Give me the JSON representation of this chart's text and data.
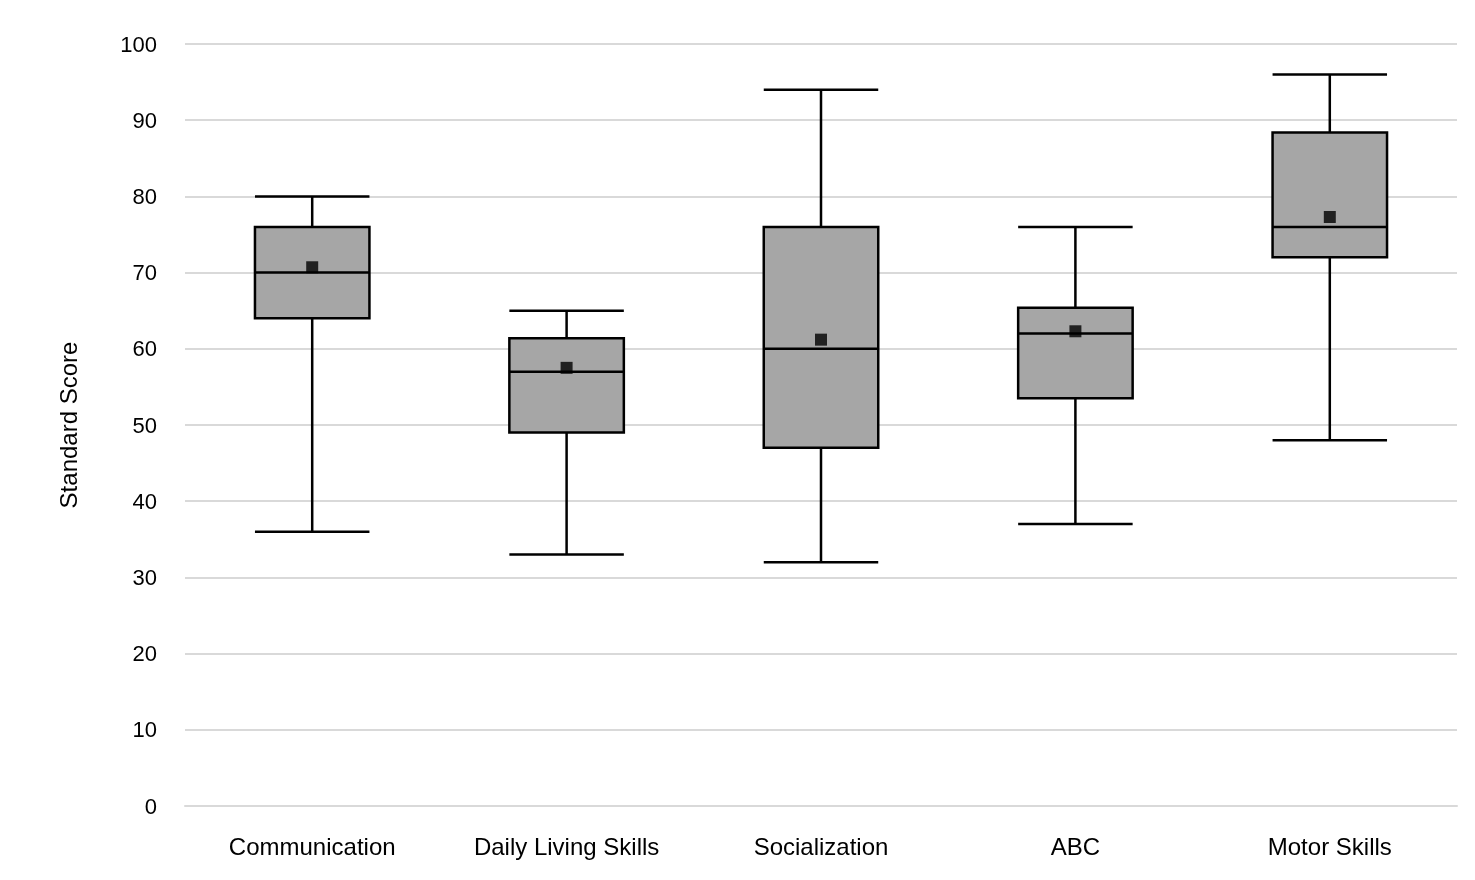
{
  "chart_data": {
    "type": "box",
    "ylabel": "Standard Score",
    "categories": [
      "Communication",
      "Daily Living Skills",
      "Socialization",
      "ABC",
      "Motor Skills"
    ],
    "series": [
      {
        "color": "#a6a6a6",
        "boxes": [
          {
            "low": 36,
            "q1": 64,
            "median": 70,
            "q3": 76,
            "high": 80,
            "mean": 70.7
          },
          {
            "low": 33,
            "q1": 49,
            "median": 57,
            "q3": 61.4,
            "high": 65,
            "mean": 57.5
          },
          {
            "low": 32,
            "q1": 47,
            "median": 60,
            "q3": 76,
            "high": 94,
            "mean": 61.2
          },
          {
            "low": 37,
            "q1": 53.5,
            "median": 62,
            "q3": 65.4,
            "high": 76,
            "mean": 62.3
          },
          {
            "low": 48,
            "q1": 72,
            "median": 76,
            "q3": 88.4,
            "high": 96,
            "mean": 77.3
          }
        ]
      }
    ],
    "ylim": [
      0,
      100
    ],
    "yticks": [
      0,
      10,
      20,
      30,
      40,
      50,
      60,
      70,
      80,
      90,
      100
    ],
    "grid": "y",
    "marker": "square"
  }
}
